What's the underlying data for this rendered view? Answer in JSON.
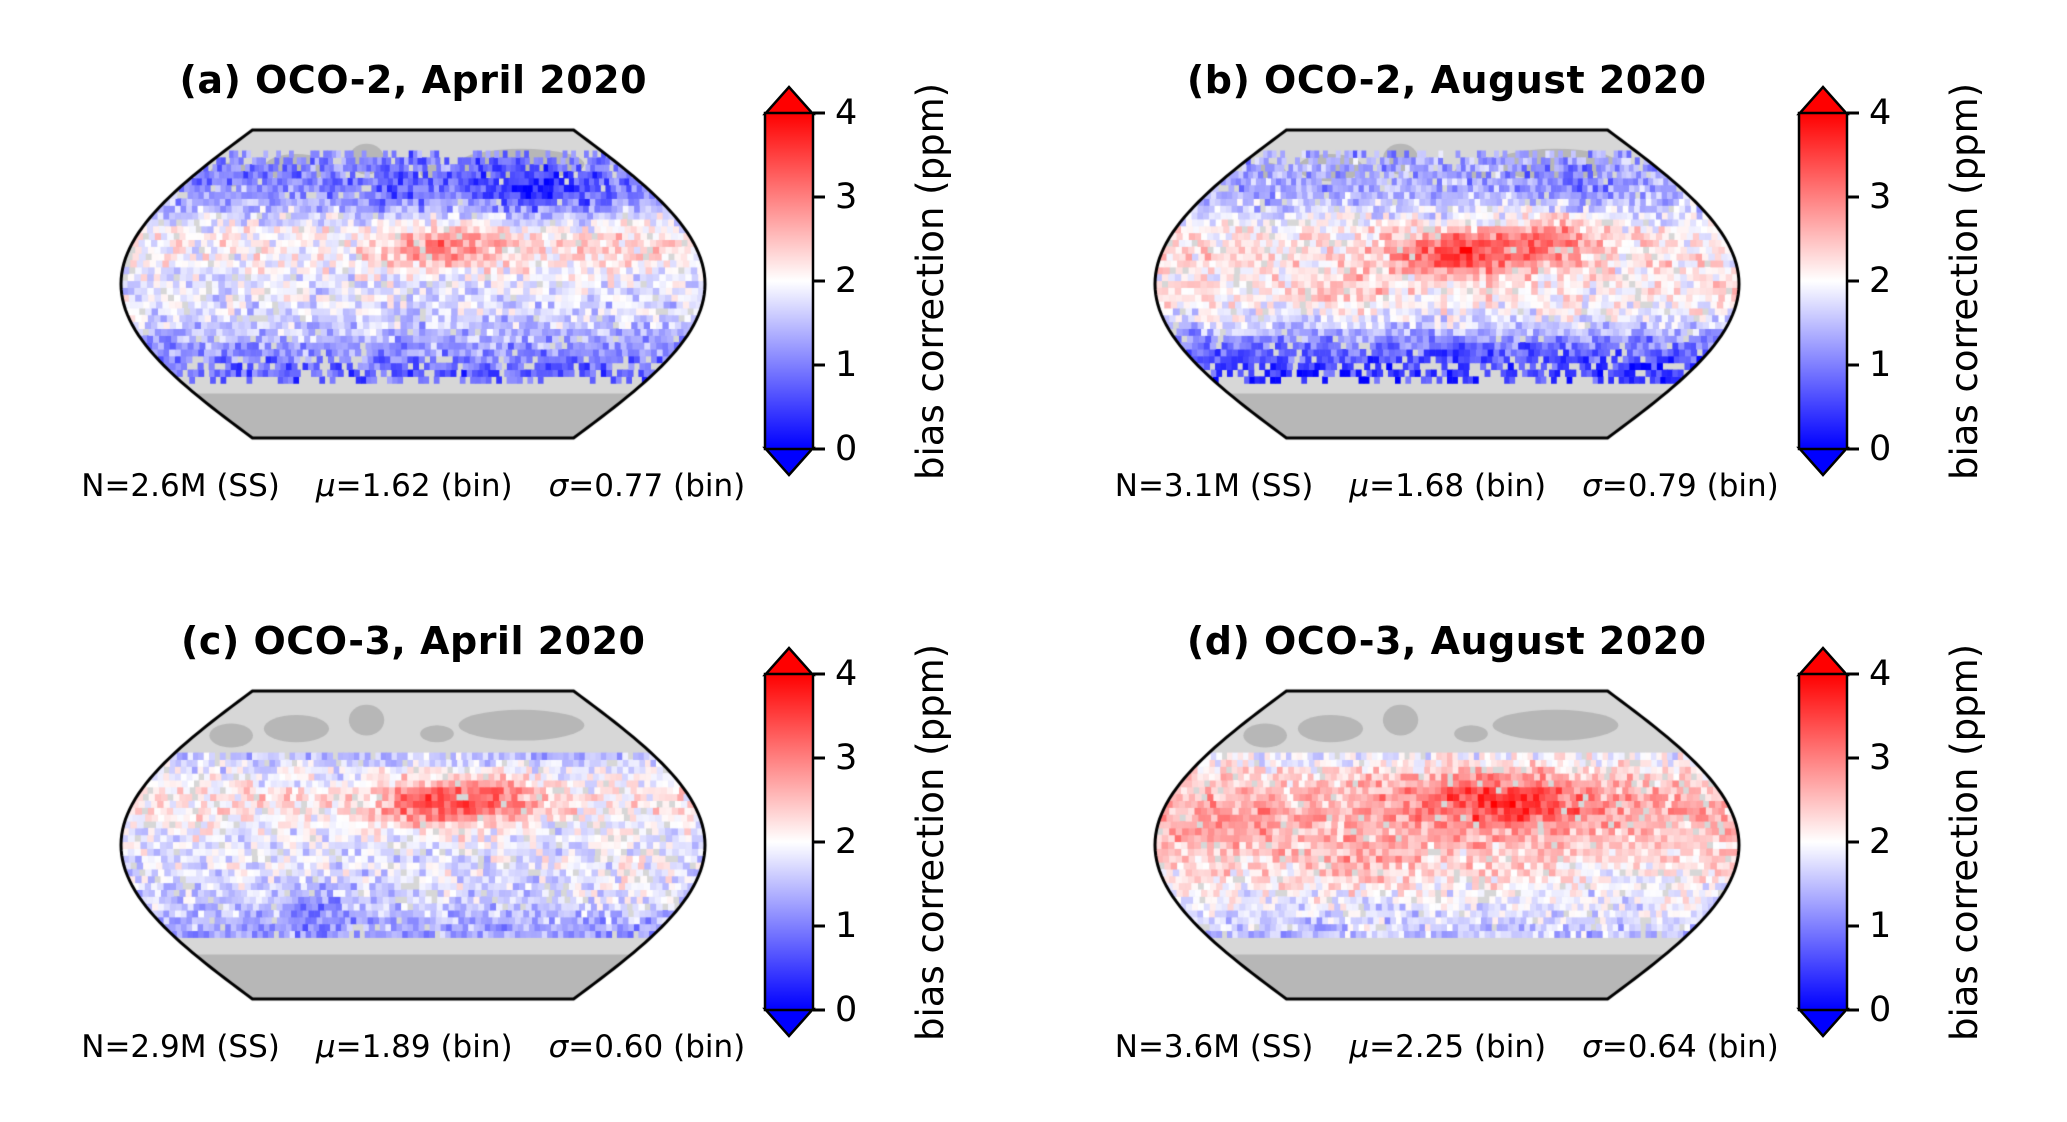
{
  "colorbar": {
    "label": "bias correction (ppm)",
    "ticks": [
      "0",
      "1",
      "2",
      "3",
      "4"
    ],
    "min": 0,
    "max": 4
  },
  "panels": [
    {
      "id": "a",
      "title": "(a) OCO-2, April 2020",
      "stats": {
        "n": "N=2.6M (SS)",
        "mu_sym": "μ",
        "mu_val": "=1.62 (bin)",
        "sigma_sym": "σ",
        "sigma_val": "=0.77 (bin)"
      },
      "seed": 7,
      "noise": 0.42,
      "coverage": {
        "lat_min": -57,
        "lat_max": 79,
        "hard_edges": false
      },
      "profile": [
        [
          -57,
          0.7
        ],
        [
          -48,
          0.8
        ],
        [
          -38,
          1.2
        ],
        [
          -28,
          1.5
        ],
        [
          -18,
          1.7
        ],
        [
          -8,
          1.8
        ],
        [
          2,
          1.8
        ],
        [
          12,
          2.0
        ],
        [
          22,
          2.1
        ],
        [
          32,
          2.0
        ],
        [
          42,
          1.6
        ],
        [
          52,
          1.2
        ],
        [
          62,
          1.0
        ],
        [
          72,
          1.0
        ],
        [
          79,
          1.1
        ]
      ],
      "hotspots": [
        {
          "lon": 25,
          "lat": 22,
          "rlon": 30,
          "rlat": 9,
          "dv": 0.9
        },
        {
          "lon": 95,
          "lat": 55,
          "rlon": 35,
          "rlat": 10,
          "dv": -0.9
        },
        {
          "lon": -15,
          "lat": 52,
          "rlon": 22,
          "rlat": 9,
          "dv": -0.4
        },
        {
          "lon": 130,
          "lat": 20,
          "rlon": 25,
          "rlat": 10,
          "dv": 0.3
        }
      ]
    },
    {
      "id": "b",
      "title": "(b) OCO-2, August 2020",
      "stats": {
        "n": "N=3.1M (SS)",
        "mu_sym": "μ",
        "mu_val": "=1.68 (bin)",
        "sigma_sym": "σ",
        "sigma_val": "=0.79 (bin)"
      },
      "seed": 13,
      "noise": 0.42,
      "coverage": {
        "lat_min": -57,
        "lat_max": 79,
        "hard_edges": false
      },
      "profile": [
        [
          -57,
          0.4
        ],
        [
          -48,
          0.5
        ],
        [
          -38,
          0.8
        ],
        [
          -28,
          1.4
        ],
        [
          -18,
          1.9
        ],
        [
          -8,
          2.1
        ],
        [
          2,
          2.1
        ],
        [
          12,
          2.2
        ],
        [
          22,
          2.2
        ],
        [
          32,
          2.1
        ],
        [
          42,
          1.7
        ],
        [
          52,
          1.4
        ],
        [
          62,
          1.3
        ],
        [
          72,
          1.3
        ],
        [
          79,
          1.3
        ]
      ],
      "hotspots": [
        {
          "lon": 10,
          "lat": 18,
          "rlon": 30,
          "rlat": 9,
          "dv": 1.3
        },
        {
          "lon": 65,
          "lat": 28,
          "rlon": 22,
          "rlat": 9,
          "dv": 0.8
        },
        {
          "lon": -60,
          "lat": -5,
          "rlon": 18,
          "rlat": 8,
          "dv": 0.4
        },
        {
          "lon": 100,
          "lat": 60,
          "rlon": 30,
          "rlat": 8,
          "dv": -0.4
        }
      ]
    },
    {
      "id": "c",
      "title": "(c) OCO-3, April 2020",
      "stats": {
        "n": "N=2.9M (SS)",
        "mu_sym": "μ",
        "mu_val": "=1.89 (bin)",
        "sigma_sym": "σ",
        "sigma_val": "=0.60 (bin)"
      },
      "seed": 21,
      "noise": 0.4,
      "coverage": {
        "lat_min": -53,
        "lat_max": 53,
        "hard_edges": true
      },
      "profile": [
        [
          -53,
          1.2
        ],
        [
          -43,
          1.4
        ],
        [
          -33,
          1.6
        ],
        [
          -23,
          1.7
        ],
        [
          -13,
          1.8
        ],
        [
          -3,
          1.8
        ],
        [
          7,
          1.9
        ],
        [
          17,
          2.1
        ],
        [
          27,
          2.2
        ],
        [
          37,
          2.0
        ],
        [
          47,
          1.7
        ],
        [
          53,
          1.5
        ]
      ],
      "hotspots": [
        {
          "lon": 20,
          "lat": 25,
          "rlon": 28,
          "rlat": 10,
          "dv": 1.3
        },
        {
          "lon": 60,
          "lat": 30,
          "rlon": 18,
          "rlat": 8,
          "dv": 0.6
        },
        {
          "lon": -65,
          "lat": -35,
          "rlon": 14,
          "rlat": 10,
          "dv": -0.6
        },
        {
          "lon": 140,
          "lat": -25,
          "rlon": 20,
          "rlat": 10,
          "dv": 0.3
        }
      ]
    },
    {
      "id": "d",
      "title": "(d) OCO-3, August 2020",
      "stats": {
        "n": "N=3.6M (SS)",
        "mu_sym": "μ",
        "mu_val": "=2.25 (bin)",
        "sigma_sym": "σ",
        "sigma_val": "=0.64 (bin)"
      },
      "seed": 29,
      "noise": 0.4,
      "coverage": {
        "lat_min": -53,
        "lat_max": 53,
        "hard_edges": true
      },
      "profile": [
        [
          -53,
          1.5
        ],
        [
          -43,
          1.7
        ],
        [
          -33,
          1.9
        ],
        [
          -23,
          2.1
        ],
        [
          -13,
          2.3
        ],
        [
          -3,
          2.4
        ],
        [
          7,
          2.5
        ],
        [
          17,
          2.6
        ],
        [
          27,
          2.6
        ],
        [
          37,
          2.4
        ],
        [
          47,
          2.1
        ],
        [
          53,
          1.9
        ]
      ],
      "hotspots": [
        {
          "lon": 35,
          "lat": 27,
          "rlon": 38,
          "rlat": 11,
          "dv": 1.1
        },
        {
          "lon": -55,
          "lat": -8,
          "rlon": 20,
          "rlat": 9,
          "dv": 0.35
        },
        {
          "lon": 110,
          "lat": -20,
          "rlon": 22,
          "rlat": 9,
          "dv": -0.3
        },
        {
          "lon": -140,
          "lat": 10,
          "rlon": 25,
          "rlat": 8,
          "dv": 0.3
        }
      ]
    }
  ],
  "chart_data": {
    "type": "heatmap",
    "description": "Four-panel figure of binned XCO2 bias correction (ppm) mapped on a Robinson-style world projection for OCO-2 and OCO-3 in April and August 2020. Blue bands at mid/high latitudes (values near 0-1 ppm), reddish values over the tropics with strong red maxima over North Africa / Middle East / Central Asia. OCO-3 panels are limited to roughly 52S-52N latitude coverage.",
    "colorbar": {
      "label": "bias correction (ppm)",
      "min": 0,
      "max": 4,
      "ticks": [
        0,
        1,
        2,
        3,
        4
      ],
      "colormap": "blue-white-red (bwr)",
      "extend": "both"
    },
    "panels": [
      {
        "label": "a",
        "title": "(a) OCO-2, April 2020",
        "satellite": "OCO-2",
        "month": "April 2020",
        "N_soundings": "2.6M (SS)",
        "mean_bin_ppm": 1.62,
        "sigma_bin_ppm": 0.77
      },
      {
        "label": "b",
        "title": "(b) OCO-2, August 2020",
        "satellite": "OCO-2",
        "month": "August 2020",
        "N_soundings": "3.1M (SS)",
        "mean_bin_ppm": 1.68,
        "sigma_bin_ppm": 0.79
      },
      {
        "label": "c",
        "title": "(c) OCO-3, April 2020",
        "satellite": "OCO-3",
        "month": "April 2020",
        "N_soundings": "2.9M (SS)",
        "mean_bin_ppm": 1.89,
        "sigma_bin_ppm": 0.6
      },
      {
        "label": "d",
        "title": "(d) OCO-3, August 2020",
        "satellite": "OCO-3",
        "month": "August 2020",
        "N_soundings": "3.6M (SS)",
        "mean_bin_ppm": 2.25,
        "sigma_bin_ppm": 0.64
      }
    ]
  }
}
